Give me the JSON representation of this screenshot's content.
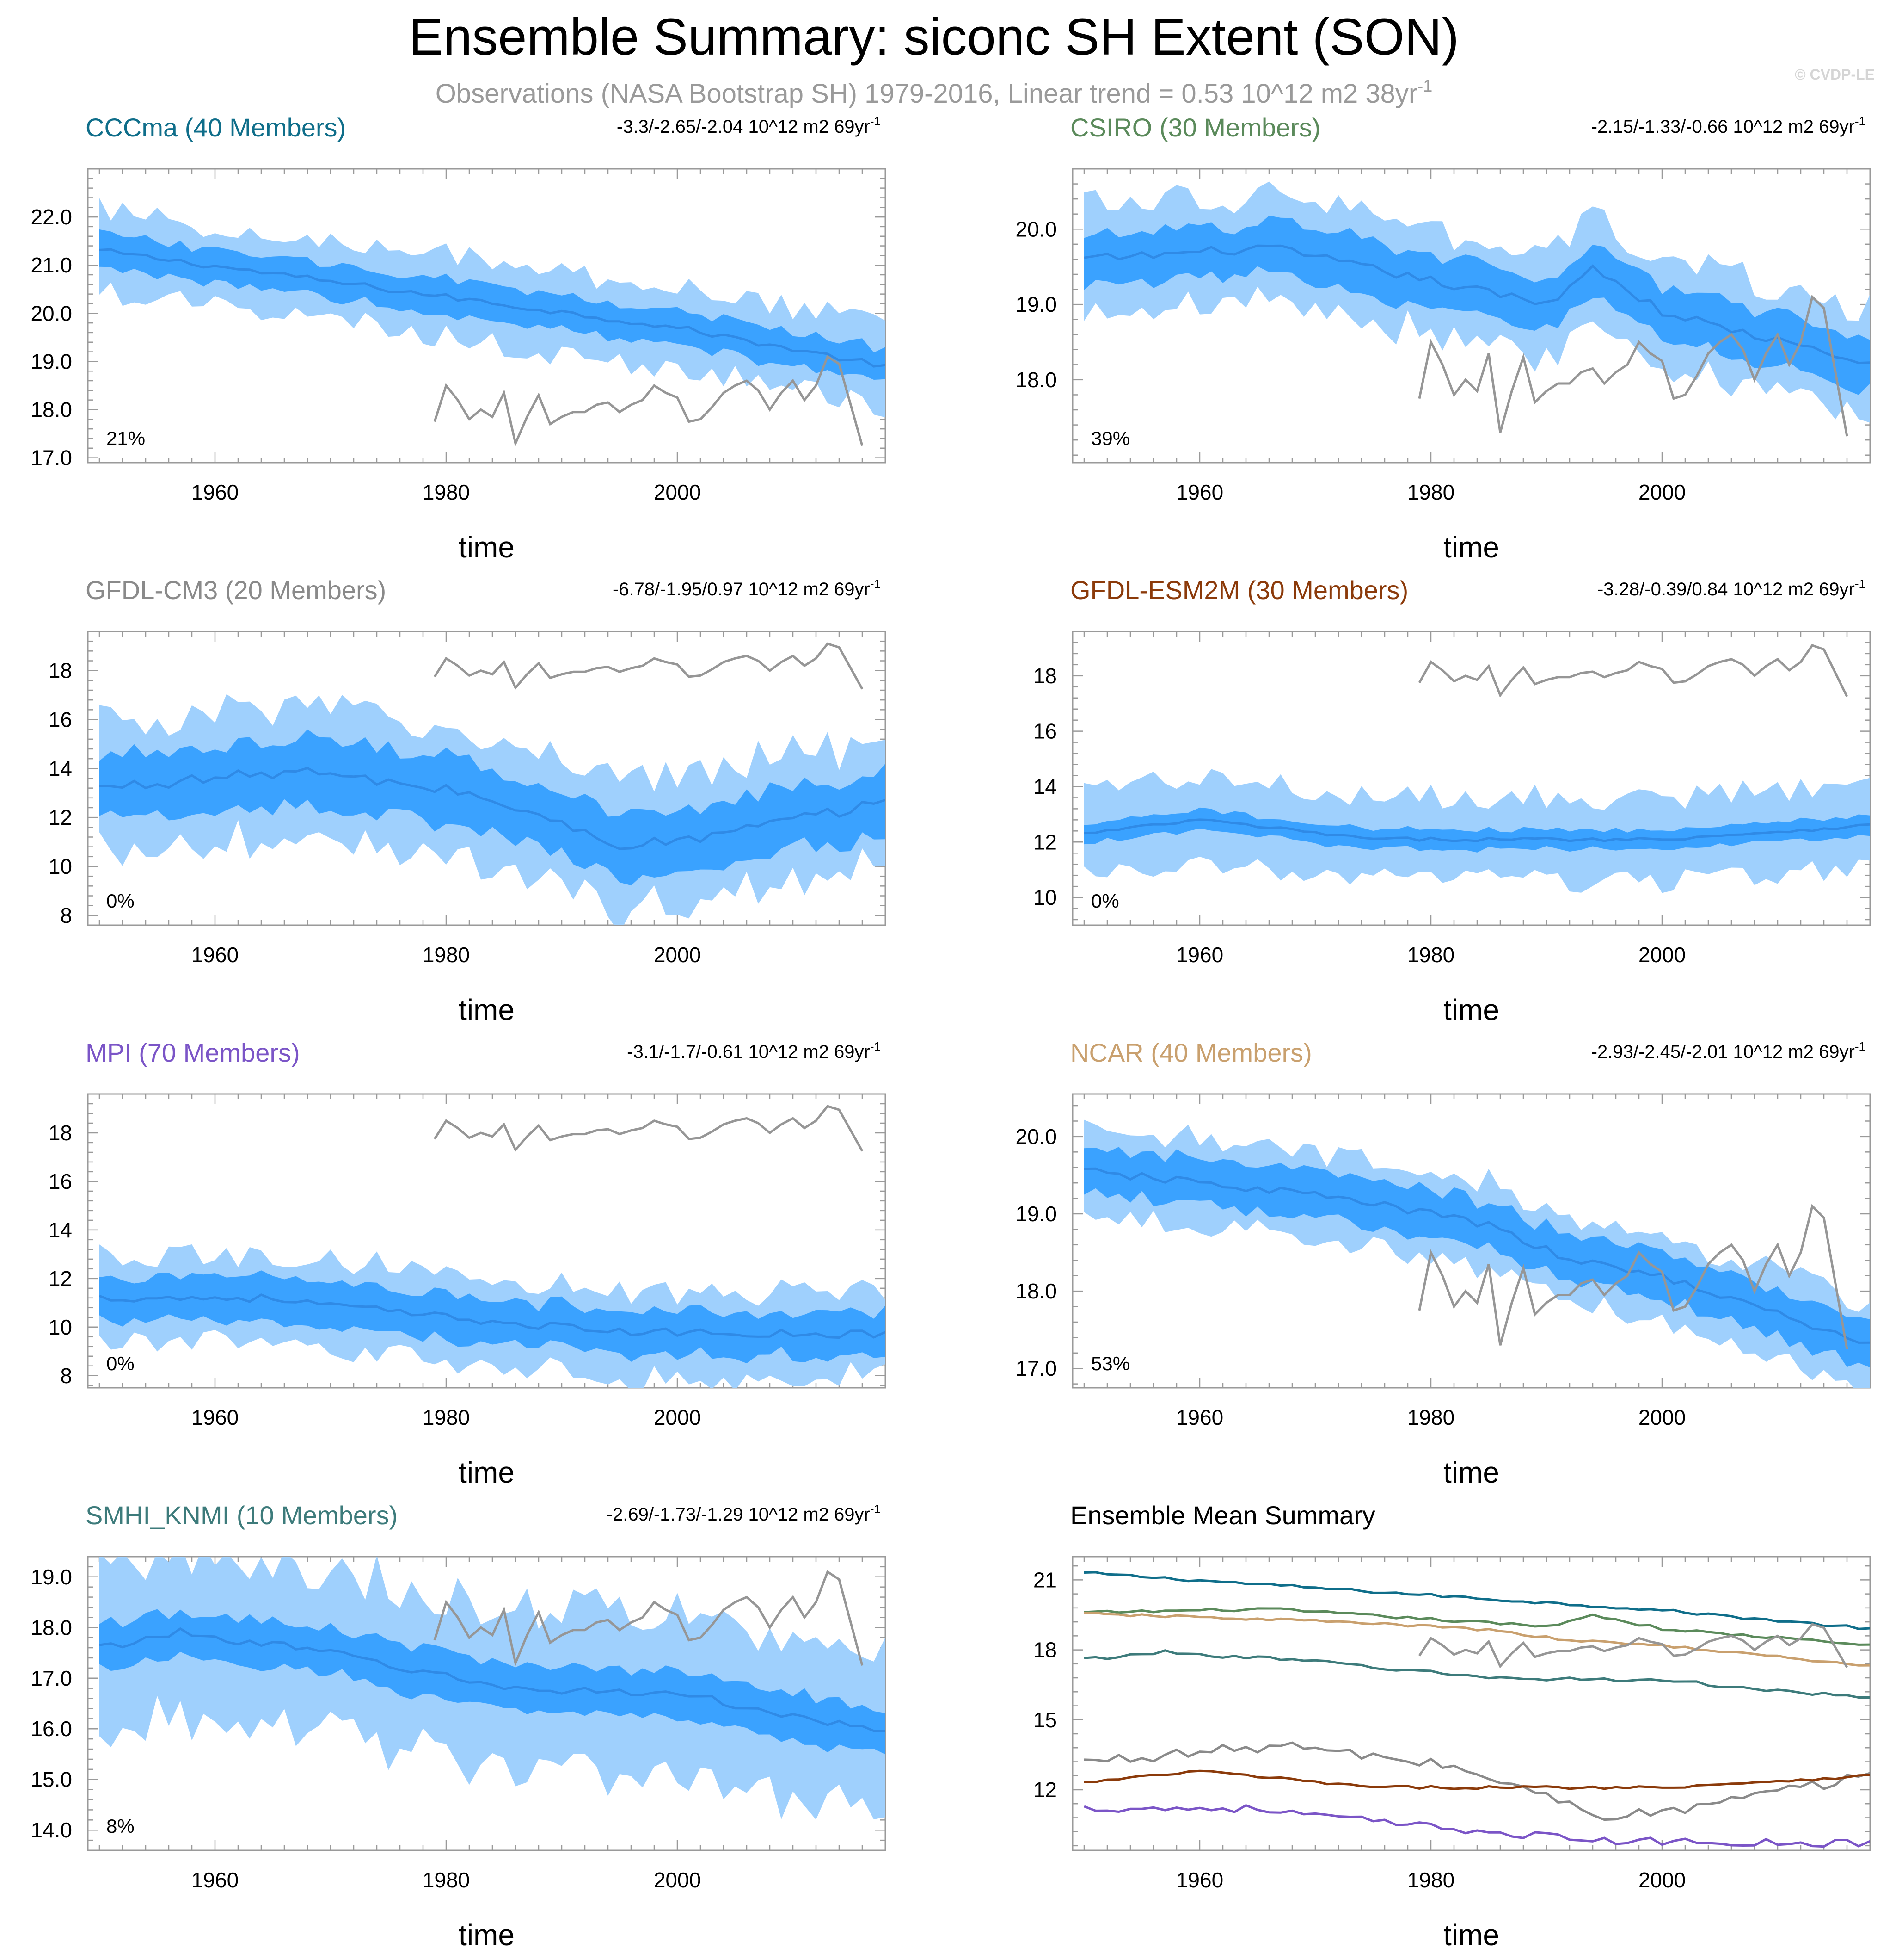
{
  "title": "Ensemble Summary: siconc SH Extent (SON)",
  "subtitle": "Observations (NASA Bootstrap SH) 1979-2016, Linear trend = 0.53 10^12 m2 38yr",
  "subtitle_sup": "-1",
  "watermark": "© CVDP-LE",
  "colors": {
    "band_outer": "#9fd0fd",
    "band_inner": "#3aa2ff",
    "mean_line": "#2f8ae6",
    "obs_line": "#969696",
    "frame": "#9a9a9a"
  },
  "obs": {
    "name": "Observations (NASA Bootstrap SH)",
    "x": [
      1979,
      1980,
      1981,
      1982,
      1983,
      1984,
      1985,
      1986,
      1987,
      1988,
      1989,
      1990,
      1991,
      1992,
      1993,
      1994,
      1995,
      1996,
      1997,
      1998,
      1999,
      2000,
      2001,
      2002,
      2003,
      2004,
      2005,
      2006,
      2007,
      2008,
      2009,
      2010,
      2011,
      2012,
      2013,
      2014,
      2015,
      2016
    ],
    "y": [
      17.75,
      18.5,
      18.2,
      17.8,
      18.0,
      17.85,
      18.35,
      17.3,
      17.85,
      18.3,
      17.7,
      17.85,
      17.95,
      17.95,
      18.1,
      18.15,
      17.95,
      18.1,
      18.2,
      18.5,
      18.35,
      18.25,
      17.75,
      17.8,
      18.05,
      18.35,
      18.5,
      18.6,
      18.4,
      18.0,
      18.35,
      18.6,
      18.2,
      18.5,
      19.1,
      18.95,
      18.1,
      17.25
    ]
  },
  "chart_data": [
    {
      "type": "line",
      "title": "CCCma (40 Members)",
      "title_color": "#0f6e8a",
      "trend_text": "-3.3/-2.65/-2.04 10^12 m2 69yr",
      "trend_sup": "-1",
      "percent_label": "21%",
      "xlabel": "time",
      "x_range": [
        1949,
        2018
      ],
      "x_ticks": [
        "1960",
        "1980",
        "2000"
      ],
      "ylim": [
        16.9,
        23.0
      ],
      "y_ticks": [
        "17.0",
        "18.0",
        "19.0",
        "20.0",
        "21.0",
        "22.0"
      ],
      "mean_endpoints": [
        [
          1950,
          21.3
        ],
        [
          2000,
          19.7
        ],
        [
          2018,
          18.9
        ]
      ],
      "spread": [
        0.35,
        0.85
      ],
      "series": [
        {
          "name": "ensemble mean",
          "role": "mean"
        },
        {
          "name": "observations",
          "role": "obs"
        }
      ]
    },
    {
      "type": "line",
      "title": "CSIRO (30 Members)",
      "title_color": "#5b8a5b",
      "trend_text": "-2.15/-1.33/-0.66 10^12 m2 69yr",
      "trend_sup": "-1",
      "percent_label": "39%",
      "xlabel": "time",
      "x_range": [
        1949,
        2018
      ],
      "x_ticks": [
        "1960",
        "1980",
        "2000"
      ],
      "ylim": [
        16.9,
        20.8
      ],
      "y_ticks": [
        "18.0",
        "19.0",
        "20.0"
      ],
      "mean_endpoints": [
        [
          1950,
          19.6
        ],
        [
          1966,
          19.75
        ],
        [
          1990,
          19.0
        ],
        [
          1994,
          19.5
        ],
        [
          2000,
          18.9
        ],
        [
          2018,
          18.2
        ]
      ],
      "spread": [
        0.35,
        0.7
      ],
      "series": [
        {
          "name": "ensemble mean",
          "role": "mean"
        },
        {
          "name": "observations",
          "role": "obs"
        }
      ]
    },
    {
      "type": "line",
      "title": "GFDL-CM3 (20 Members)",
      "title_color": "#8a8a8a",
      "trend_text": "-6.78/-1.95/0.97 10^12 m2 69yr",
      "trend_sup": "-1",
      "percent_label": "0%",
      "xlabel": "time",
      "x_range": [
        1949,
        2018
      ],
      "x_ticks": [
        "1960",
        "1980",
        "2000"
      ],
      "ylim": [
        7.6,
        19.6
      ],
      "y_ticks": [
        "8",
        "10",
        "12",
        "14",
        "16",
        "18"
      ],
      "mean_endpoints": [
        [
          1950,
          13.2
        ],
        [
          1967,
          13.9
        ],
        [
          1982,
          13.0
        ],
        [
          1995,
          10.9
        ],
        [
          2000,
          11.0
        ],
        [
          2018,
          12.6
        ]
      ],
      "spread": [
        1.3,
        2.7
      ],
      "series": [
        {
          "name": "ensemble mean",
          "role": "mean"
        },
        {
          "name": "observations",
          "role": "obs"
        }
      ]
    },
    {
      "type": "line",
      "title": "GFDL-ESM2M (30 Members)",
      "title_color": "#8b3a0a",
      "trend_text": "-3.28/-0.39/0.84 10^12 m2 69yr",
      "trend_sup": "-1",
      "percent_label": "0%",
      "xlabel": "time",
      "x_range": [
        1949,
        2018
      ],
      "x_ticks": [
        "1960",
        "1980",
        "2000"
      ],
      "ylim": [
        9.0,
        19.6
      ],
      "y_ticks": [
        "10",
        "12",
        "14",
        "16",
        "18"
      ],
      "mean_endpoints": [
        [
          1950,
          12.3
        ],
        [
          1960,
          12.8
        ],
        [
          1975,
          12.1
        ],
        [
          2000,
          12.1
        ],
        [
          2018,
          12.6
        ]
      ],
      "spread": [
        0.35,
        1.5
      ],
      "series": [
        {
          "name": "ensemble mean",
          "role": "mean"
        },
        {
          "name": "observations",
          "role": "obs"
        }
      ]
    },
    {
      "type": "line",
      "title": "MPI (70 Members)",
      "title_color": "#7b55c7",
      "trend_text": "-3.1/-1.7/-0.61 10^12 m2 69yr",
      "trend_sup": "-1",
      "percent_label": "0%",
      "xlabel": "time",
      "x_range": [
        1949,
        2018
      ],
      "x_ticks": [
        "1960",
        "1980",
        "2000"
      ],
      "ylim": [
        7.5,
        19.6
      ],
      "y_ticks": [
        "8",
        "10",
        "12",
        "14",
        "16",
        "18"
      ],
      "mean_endpoints": [
        [
          1950,
          11.2
        ],
        [
          1964,
          11.2
        ],
        [
          1980,
          10.4
        ],
        [
          1995,
          9.8
        ],
        [
          2018,
          9.7
        ]
      ],
      "spread": [
        0.9,
        1.8
      ],
      "series": [
        {
          "name": "ensemble mean",
          "role": "mean"
        },
        {
          "name": "observations",
          "role": "obs"
        }
      ]
    },
    {
      "type": "line",
      "title": "NCAR (40 Members)",
      "title_color": "#c9a06e",
      "trend_text": "-2.93/-2.45/-2.01 10^12 m2 69yr",
      "trend_sup": "-1",
      "percent_label": "53%",
      "xlabel": "time",
      "x_range": [
        1949,
        2018
      ],
      "x_ticks": [
        "1960",
        "1980",
        "2000"
      ],
      "ylim": [
        16.75,
        20.55
      ],
      "y_ticks": [
        "17.0",
        "18.0",
        "19.0",
        "20.0"
      ],
      "mean_endpoints": [
        [
          1950,
          19.55
        ],
        [
          1970,
          19.25
        ],
        [
          1980,
          19.0
        ],
        [
          1985,
          18.85
        ],
        [
          1992,
          18.4
        ],
        [
          2000,
          18.2
        ],
        [
          2018,
          17.3
        ]
      ],
      "spread": [
        0.3,
        0.55
      ],
      "series": [
        {
          "name": "ensemble mean",
          "role": "mean"
        },
        {
          "name": "observations",
          "role": "obs"
        }
      ]
    },
    {
      "type": "line",
      "title": "SMHI_KNMI (10 Members)",
      "title_color": "#3d7b7b",
      "trend_text": "-2.69/-1.73/-1.29 10^12 m2 69yr",
      "trend_sup": "-1",
      "percent_label": "8%",
      "xlabel": "time",
      "x_range": [
        1949,
        2018
      ],
      "x_ticks": [
        "1960",
        "1980",
        "2000"
      ],
      "ylim": [
        13.6,
        19.4
      ],
      "y_ticks": [
        "14.0",
        "15.0",
        "16.0",
        "17.0",
        "18.0",
        "19.0"
      ],
      "mean_endpoints": [
        [
          1950,
          17.6
        ],
        [
          1957,
          17.9
        ],
        [
          1970,
          17.5
        ],
        [
          1985,
          16.8
        ],
        [
          2000,
          16.7
        ],
        [
          2018,
          15.9
        ]
      ],
      "spread": [
        0.45,
        1.6
      ],
      "series": [
        {
          "name": "ensemble mean",
          "role": "mean"
        },
        {
          "name": "observations",
          "role": "obs"
        }
      ]
    }
  ],
  "summary": {
    "title": "Ensemble Mean Summary",
    "xlabel": "time",
    "x_range": [
      1949,
      2018
    ],
    "x_ticks": [
      "1960",
      "1980",
      "2000"
    ],
    "ylim": [
      9.4,
      22.0
    ],
    "y_ticks": [
      "12",
      "15",
      "18",
      "21"
    ]
  }
}
